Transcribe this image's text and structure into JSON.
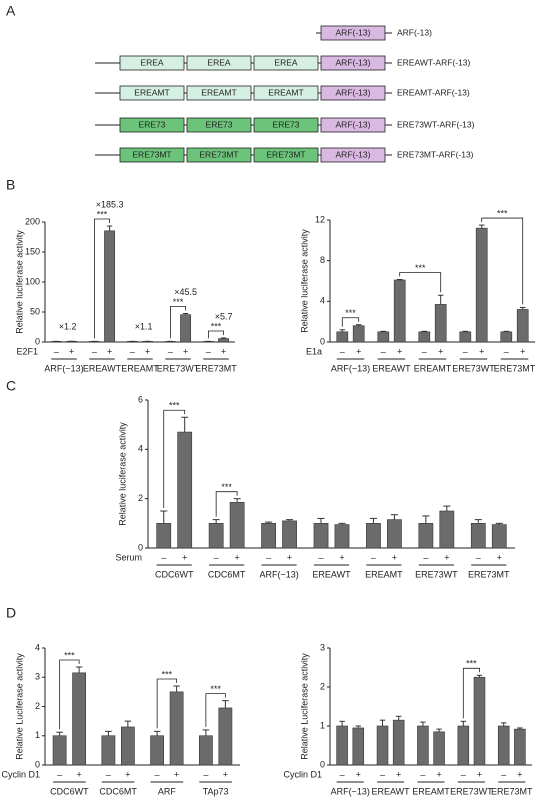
{
  "panel_labels": [
    "A",
    "B",
    "C",
    "D"
  ],
  "panel_a": {
    "constructs": [
      {
        "name": "ARF(-13)",
        "elements": [
          {
            "text": "ARF(-13)",
            "color": "#d9b8e2"
          }
        ]
      },
      {
        "name": "EREAWT-ARF(-13)",
        "elements": [
          {
            "text": "EREA",
            "color": "#d6efe3"
          },
          {
            "text": "EREA",
            "color": "#d6efe3"
          },
          {
            "text": "EREA",
            "color": "#d6efe3"
          },
          {
            "text": "ARF(-13)",
            "color": "#d9b8e2"
          }
        ]
      },
      {
        "name": "EREAMT-ARF(-13)",
        "elements": [
          {
            "text": "EREAMT",
            "color": "#d6efe3"
          },
          {
            "text": "EREAMT",
            "color": "#d6efe3"
          },
          {
            "text": "EREAMT",
            "color": "#d6efe3"
          },
          {
            "text": "ARF(-13)",
            "color": "#d9b8e2"
          }
        ]
      },
      {
        "name": "ERE73WT-ARF(-13)",
        "elements": [
          {
            "text": "ERE73",
            "color": "#6cc47a"
          },
          {
            "text": "ERE73",
            "color": "#6cc47a"
          },
          {
            "text": "ERE73",
            "color": "#6cc47a"
          },
          {
            "text": "ARF(-13)",
            "color": "#d9b8e2"
          }
        ]
      },
      {
        "name": "ERE73MT-ARF(-13)",
        "elements": [
          {
            "text": "ERE73MT",
            "color": "#6cc47a"
          },
          {
            "text": "ERE73MT",
            "color": "#6cc47a"
          },
          {
            "text": "ERE73MT",
            "color": "#6cc47a"
          },
          {
            "text": "ARF(-13)",
            "color": "#d9b8e2"
          }
        ]
      }
    ]
  },
  "chart_data": [
    {
      "type": "bar",
      "ylabel": "Relative luciferase activity",
      "condition_label": "E2F1",
      "color": "#6b6b6b",
      "groups": [
        "ARF(−13)",
        "EREAWT",
        "EREAMT",
        "ERE73WT",
        "ERE73MT"
      ],
      "conditions": [
        "–",
        "+"
      ],
      "values": [
        [
          1,
          1.2
        ],
        [
          1,
          185.3
        ],
        [
          1,
          1.1
        ],
        [
          1,
          45.5
        ],
        [
          1,
          5.7
        ]
      ],
      "errors": [
        [
          0.1,
          0.1
        ],
        [
          0.1,
          8
        ],
        [
          0.1,
          0.1
        ],
        [
          0.1,
          2
        ],
        [
          0.1,
          1
        ]
      ],
      "fold_labels": [
        "×1.2",
        "×185.3",
        "×1.1",
        "×45.5",
        "×5.7"
      ],
      "brackets": [
        {
          "from": [
            1,
            0
          ],
          "to": [
            1,
            1
          ],
          "label": "***"
        },
        {
          "from": [
            3,
            0
          ],
          "to": [
            3,
            1
          ],
          "label": "***"
        },
        {
          "from": [
            4,
            0
          ],
          "to": [
            4,
            1
          ],
          "label": "***"
        }
      ],
      "ylim": [
        0,
        200
      ],
      "yticks": [
        0,
        50,
        100,
        150,
        200
      ]
    },
    {
      "type": "bar",
      "ylabel": "Relative luciferase activity",
      "condition_label": "E1a",
      "color": "#6b6b6b",
      "groups": [
        "ARF(−13)",
        "EREAWT",
        "EREAMT",
        "ERE73WT",
        "ERE73MT"
      ],
      "conditions": [
        "–",
        "+"
      ],
      "values": [
        [
          1,
          1.6
        ],
        [
          1,
          6.1
        ],
        [
          1,
          3.7
        ],
        [
          1,
          11.2
        ],
        [
          1,
          3.2
        ]
      ],
      "errors": [
        [
          0.2,
          0.1
        ],
        [
          0.05,
          0.05
        ],
        [
          0.05,
          0.9
        ],
        [
          0.05,
          0.3
        ],
        [
          0.05,
          0.2
        ]
      ],
      "brackets": [
        {
          "from": [
            0,
            0
          ],
          "to": [
            0,
            1
          ],
          "label": "***"
        },
        {
          "from": [
            1,
            1
          ],
          "to": [
            2,
            1
          ],
          "label": "***"
        },
        {
          "from": [
            3,
            1
          ],
          "to": [
            4,
            1
          ],
          "label": "***"
        }
      ],
      "ylim": [
        0,
        12
      ],
      "yticks": [
        0,
        4,
        8,
        12
      ]
    },
    {
      "type": "bar",
      "ylabel": "Relative luciferase activity",
      "condition_label": "Serum",
      "color": "#6b6b6b",
      "groups": [
        "CDC6WT",
        "CDC6MT",
        "ARF(−13)",
        "EREAWT",
        "EREAMT",
        "ERE73WT",
        "ERE73MT"
      ],
      "conditions": [
        "–",
        "+"
      ],
      "values": [
        [
          1,
          4.7
        ],
        [
          1,
          1.85
        ],
        [
          1,
          1.1
        ],
        [
          1,
          0.95
        ],
        [
          1,
          1.15
        ],
        [
          1,
          1.5
        ],
        [
          1,
          0.95
        ]
      ],
      "errors": [
        [
          0.5,
          0.6
        ],
        [
          0.15,
          0.15
        ],
        [
          0.05,
          0.05
        ],
        [
          0.2,
          0.05
        ],
        [
          0.2,
          0.2
        ],
        [
          0.3,
          0.2
        ],
        [
          0.15,
          0.05
        ]
      ],
      "brackets": [
        {
          "from": [
            0,
            0
          ],
          "to": [
            0,
            1
          ],
          "label": "***"
        },
        {
          "from": [
            1,
            0
          ],
          "to": [
            1,
            1
          ],
          "label": "***"
        }
      ],
      "ylim": [
        0,
        6
      ],
      "yticks": [
        0,
        2,
        4,
        6
      ]
    },
    {
      "type": "bar",
      "ylabel": "Relative Luciferase activity",
      "condition_label": "Cyclin D1",
      "color": "#6b6b6b",
      "groups": [
        "CDC6WT",
        "CDC6MT",
        "ARF",
        "TAp73"
      ],
      "conditions": [
        "–",
        "+"
      ],
      "values": [
        [
          1,
          3.15
        ],
        [
          1,
          1.3
        ],
        [
          1,
          2.5
        ],
        [
          1,
          1.95
        ]
      ],
      "errors": [
        [
          0.12,
          0.2
        ],
        [
          0.15,
          0.2
        ],
        [
          0.15,
          0.2
        ],
        [
          0.2,
          0.25
        ]
      ],
      "brackets": [
        {
          "from": [
            0,
            0
          ],
          "to": [
            0,
            1
          ],
          "label": "***"
        },
        {
          "from": [
            2,
            0
          ],
          "to": [
            2,
            1
          ],
          "label": "***"
        },
        {
          "from": [
            3,
            0
          ],
          "to": [
            3,
            1
          ],
          "label": "***"
        }
      ],
      "ylim": [
        0,
        4
      ],
      "yticks": [
        0,
        1,
        2,
        3,
        4
      ]
    },
    {
      "type": "bar",
      "ylabel": "Relative Luciferase activity",
      "condition_label": "Cyclin D1",
      "color": "#6b6b6b",
      "groups": [
        "ARF(−13)",
        "EREAWT",
        "EREAMT",
        "ERE73WT",
        "ERE73MT"
      ],
      "conditions": [
        "–",
        "+"
      ],
      "values": [
        [
          1,
          0.95
        ],
        [
          1,
          1.15
        ],
        [
          1,
          0.85
        ],
        [
          1,
          2.25
        ],
        [
          1,
          0.92
        ]
      ],
      "errors": [
        [
          0.12,
          0.05
        ],
        [
          0.15,
          0.1
        ],
        [
          0.1,
          0.07
        ],
        [
          0.12,
          0.05
        ],
        [
          0.08,
          0.03
        ]
      ],
      "brackets": [
        {
          "from": [
            3,
            0
          ],
          "to": [
            3,
            1
          ],
          "label": "***"
        }
      ],
      "ylim": [
        0,
        3
      ],
      "yticks": [
        0,
        1,
        2,
        3
      ]
    }
  ]
}
